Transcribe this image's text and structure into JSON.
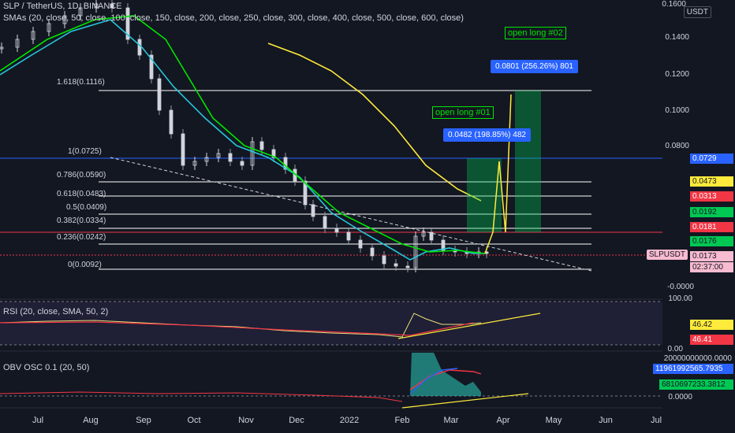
{
  "header": {
    "symbol": "SLP / TetherUS, 1D, BINANCE",
    "smas": "SMAs (20, close, 50, close, 100, close, 150, close, 200, close, 250, close, 300, close, 400, close, 500, close, 600, close)"
  },
  "currency_label": "USDT",
  "y_ticks": [
    "0.1600",
    "0.1400",
    "0.1200",
    "0.1000",
    "0.0800",
    "-0.0000"
  ],
  "x_ticks": [
    "Jul",
    "Aug",
    "Sep",
    "Oct",
    "Nov",
    "Dec",
    "2022",
    "Feb",
    "Mar",
    "Apr",
    "May",
    "Jun",
    "Jul"
  ],
  "fib_levels": [
    "1.618(0.1116)",
    "1(0.0725)",
    "0.786(0.0590)",
    "0.618(0.0483)",
    "0.5(0.0409)",
    "0.382(0.0334)",
    "0.236(0.0242)",
    "0(0.0092)"
  ],
  "price_tags": [
    {
      "text": "0.0729",
      "color": "#2962ff"
    },
    {
      "text": "0.0473",
      "color": "#ffeb3b"
    },
    {
      "text": "0.0313",
      "color": "#f23645"
    },
    {
      "text": "0.0192",
      "color": "#00c853"
    },
    {
      "text": "0.0181",
      "color": "#f23645"
    },
    {
      "text": "0.0176",
      "color": "#26c6da"
    },
    {
      "text": "0.0173",
      "color": "#f8bbd0"
    },
    {
      "text": "02:37:00",
      "color": "#f8bbd0"
    }
  ],
  "symbol_tag": "SLPUSDT",
  "measure_boxes": [
    "0.0482 (198.85%) 482",
    "0.0801 (256.26%) 801"
  ],
  "annotations": [
    "open long #01",
    "open long #02"
  ],
  "rsi": {
    "title": "RSI (20, close, SMA, 50, 2)",
    "ticks": [
      "100.00",
      "0.00"
    ],
    "tags": [
      "46.42",
      "46.41"
    ]
  },
  "obv": {
    "title": "OBV OSC 0.1 (20, 50)",
    "ticks": [
      "20000000000.0000",
      "0.0000"
    ],
    "tags": [
      "11961992565.7935",
      "6810697233.3812"
    ]
  },
  "colors": {
    "background": "#131722",
    "up": "#d1d4dc",
    "sma_green": "#00e600",
    "sma_cyan": "#26c6da",
    "sma_yellow": "#ffeb3b",
    "fib_line": "#ffffff",
    "blue_line": "#2962ff",
    "red_line": "#f23645"
  },
  "chart_data": {
    "type": "line",
    "title": "SLP / TetherUS, 1D, BINANCE",
    "x": [
      "Jul",
      "Aug",
      "Sep",
      "Oct",
      "Nov",
      "Dec",
      "2022",
      "Feb",
      "Mar",
      "Apr"
    ],
    "series": [
      {
        "name": "close",
        "values": [
          0.15,
          0.16,
          0.1,
          0.06,
          0.07,
          0.05,
          0.03,
          0.012,
          0.019,
          0.0173
        ]
      }
    ],
    "ylim": [
      0,
      0.16
    ]
  }
}
